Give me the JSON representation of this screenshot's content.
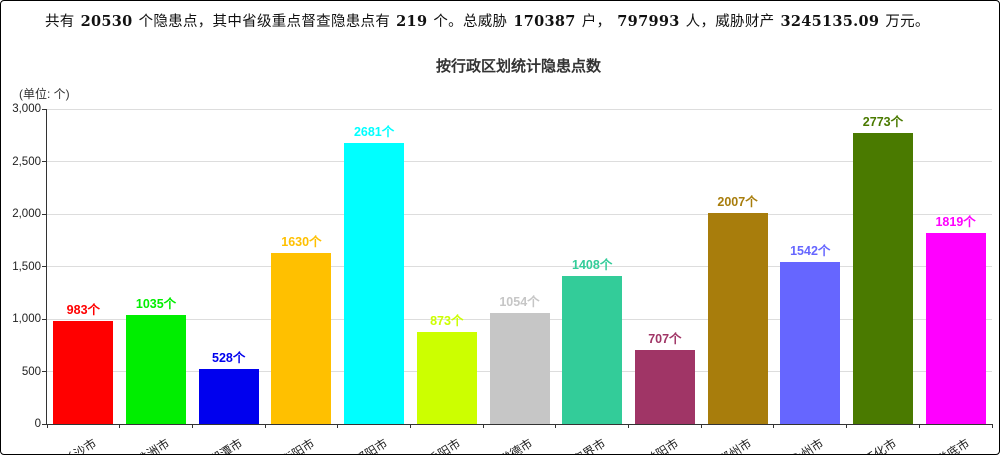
{
  "header": {
    "segments": [
      {
        "text": "共有",
        "bold": false
      },
      {
        "text": "20530",
        "bold": true
      },
      {
        "text": "个隐患点，其中省级重点督查隐患点有",
        "bold": false
      },
      {
        "text": "219",
        "bold": true
      },
      {
        "text": "个。总威胁",
        "bold": false
      },
      {
        "text": "170387",
        "bold": true
      },
      {
        "text": "户，",
        "bold": false
      },
      {
        "text": "797993",
        "bold": true
      },
      {
        "text": "人，威胁财产",
        "bold": false
      },
      {
        "text": "3245135.09",
        "bold": true
      },
      {
        "text": "万元。",
        "bold": false
      }
    ]
  },
  "chart_data": {
    "type": "bar",
    "title": "按行政区划统计隐患点数",
    "unit_label": "(单位: 个)",
    "categories": [
      "长沙市",
      "株洲市",
      "湘潭市",
      "衡阳市",
      "邵阳市",
      "岳阳市",
      "常德市",
      "张家界市",
      "益阳市",
      "郴州市",
      "永州市",
      "怀化市",
      "娄底市"
    ],
    "values": [
      983,
      1035,
      528,
      1630,
      2681,
      873,
      1054,
      1408,
      707,
      2007,
      1542,
      2773,
      1819
    ],
    "value_labels": [
      "983个",
      "1035个",
      "528个",
      "1630个",
      "2681个",
      "873个",
      "1054个",
      "1408个",
      "707个",
      "2007个",
      "1542个",
      "2773个",
      "1819个"
    ],
    "value_suffix": "个",
    "colors": [
      "#ff0000",
      "#00ee00",
      "#0000ee",
      "#ffc000",
      "#00ffff",
      "#ccff00",
      "#c6c6c6",
      "#33cc99",
      "#a03566",
      "#a87d0c",
      "#6666ff",
      "#4a7a00",
      "#ff00ff"
    ],
    "ylim": [
      0,
      3000
    ],
    "yticks": [
      0,
      500,
      1000,
      1500,
      2000,
      2500,
      3000
    ],
    "grid": true,
    "legend": "none",
    "grid_color": "#dddddd",
    "axis_color": "#333333"
  }
}
